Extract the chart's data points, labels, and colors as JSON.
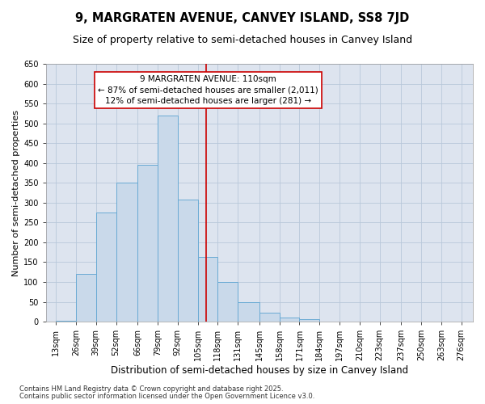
{
  "title": "9, MARGRATEN AVENUE, CANVEY ISLAND, SS8 7JD",
  "subtitle": "Size of property relative to semi-detached houses in Canvey Island",
  "xlabel": "Distribution of semi-detached houses by size in Canvey Island",
  "ylabel": "Number of semi-detached properties",
  "footnote1": "Contains HM Land Registry data © Crown copyright and database right 2025.",
  "footnote2": "Contains public sector information licensed under the Open Government Licence v3.0.",
  "annotation_title": "9 MARGRATEN AVENUE: 110sqm",
  "annotation_line1": "← 87% of semi-detached houses are smaller (2,011)",
  "annotation_line2": "12% of semi-detached houses are larger (281) →",
  "bar_left_edges": [
    13,
    26,
    39,
    52,
    66,
    79,
    92,
    105,
    118,
    131,
    145,
    158,
    171,
    184,
    197,
    210,
    223,
    237,
    250,
    263
  ],
  "bar_widths": [
    13,
    13,
    13,
    14,
    13,
    13,
    13,
    13,
    13,
    14,
    13,
    13,
    13,
    13,
    13,
    13,
    14,
    13,
    13,
    13
  ],
  "bar_heights": [
    3,
    120,
    275,
    350,
    395,
    520,
    307,
    163,
    100,
    48,
    22,
    11,
    7,
    0,
    0,
    0,
    0,
    0,
    0,
    0
  ],
  "bar_color": "#c9d9ea",
  "bar_edge_color": "#6aaad4",
  "vline_color": "#cc0000",
  "vline_x": 110.5,
  "ylim": [
    0,
    650
  ],
  "yticks": [
    0,
    50,
    100,
    150,
    200,
    250,
    300,
    350,
    400,
    450,
    500,
    550,
    600,
    650
  ],
  "xlim_left": 6.5,
  "xlim_right": 283.5,
  "xtick_positions": [
    13,
    26,
    39,
    52,
    66,
    79,
    92,
    105,
    118,
    131,
    145,
    158,
    171,
    184,
    197,
    210,
    223,
    237,
    250,
    263,
    276
  ],
  "xtick_labels": [
    "13sqm",
    "26sqm",
    "39sqm",
    "52sqm",
    "66sqm",
    "79sqm",
    "92sqm",
    "105sqm",
    "118sqm",
    "131sqm",
    "145sqm",
    "158sqm",
    "171sqm",
    "184sqm",
    "197sqm",
    "210sqm",
    "223sqm",
    "237sqm",
    "250sqm",
    "263sqm",
    "276sqm"
  ],
  "grid_color": "#b8c8da",
  "background_color": "#dde4ef",
  "title_fontsize": 10.5,
  "subtitle_fontsize": 9,
  "xlabel_fontsize": 8.5,
  "ylabel_fontsize": 8,
  "tick_fontsize": 7,
  "annotation_fontsize": 7.5,
  "footnote_fontsize": 6
}
